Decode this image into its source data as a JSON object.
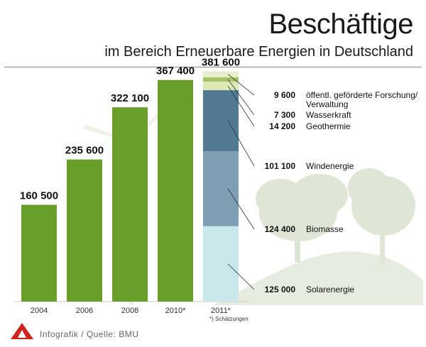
{
  "title": "Beschäftige",
  "subtitle": "im Bereich Erneuerbare Energien in Deutschland",
  "footer": "Infografik / Quelle: BMU",
  "colors": {
    "bar": "#6a9e2a",
    "accent": "#d0251f",
    "hill": "#e7ece0"
  },
  "chart_data": {
    "type": "bar",
    "categories": [
      "2004",
      "2006",
      "2008",
      "2010*",
      "2011*"
    ],
    "values": [
      160500,
      235600,
      322100,
      367400,
      381600
    ],
    "value_labels": [
      "160 500",
      "235 600",
      "322 100",
      "367 400",
      "381 600"
    ],
    "footnote": "*) Schätzungen",
    "stacked_bar": {
      "category": "2011*",
      "total": 381600,
      "segments": [
        {
          "name": "Solarenergie",
          "value": 125000,
          "label": "125 000",
          "color": "#c9e6ea"
        },
        {
          "name": "Biomasse",
          "value": 124400,
          "label": "124 400",
          "color": "#7e9fb3"
        },
        {
          "name": "Windenergie",
          "value": 101100,
          "label": "101 100",
          "color": "#4f7a92"
        },
        {
          "name": "Geothermie",
          "value": 14200,
          "label": "14 200",
          "color": "#dce8b6"
        },
        {
          "name": "Wasserkraft",
          "value": 7300,
          "label": "7 300",
          "color": "#a8c466"
        },
        {
          "name": "öffentl. geförderte Forschung/\nVerwaltung",
          "value": 9600,
          "label": "9 600",
          "color": "#e6eecb"
        }
      ]
    },
    "ylim": [
      0,
      400000
    ]
  }
}
